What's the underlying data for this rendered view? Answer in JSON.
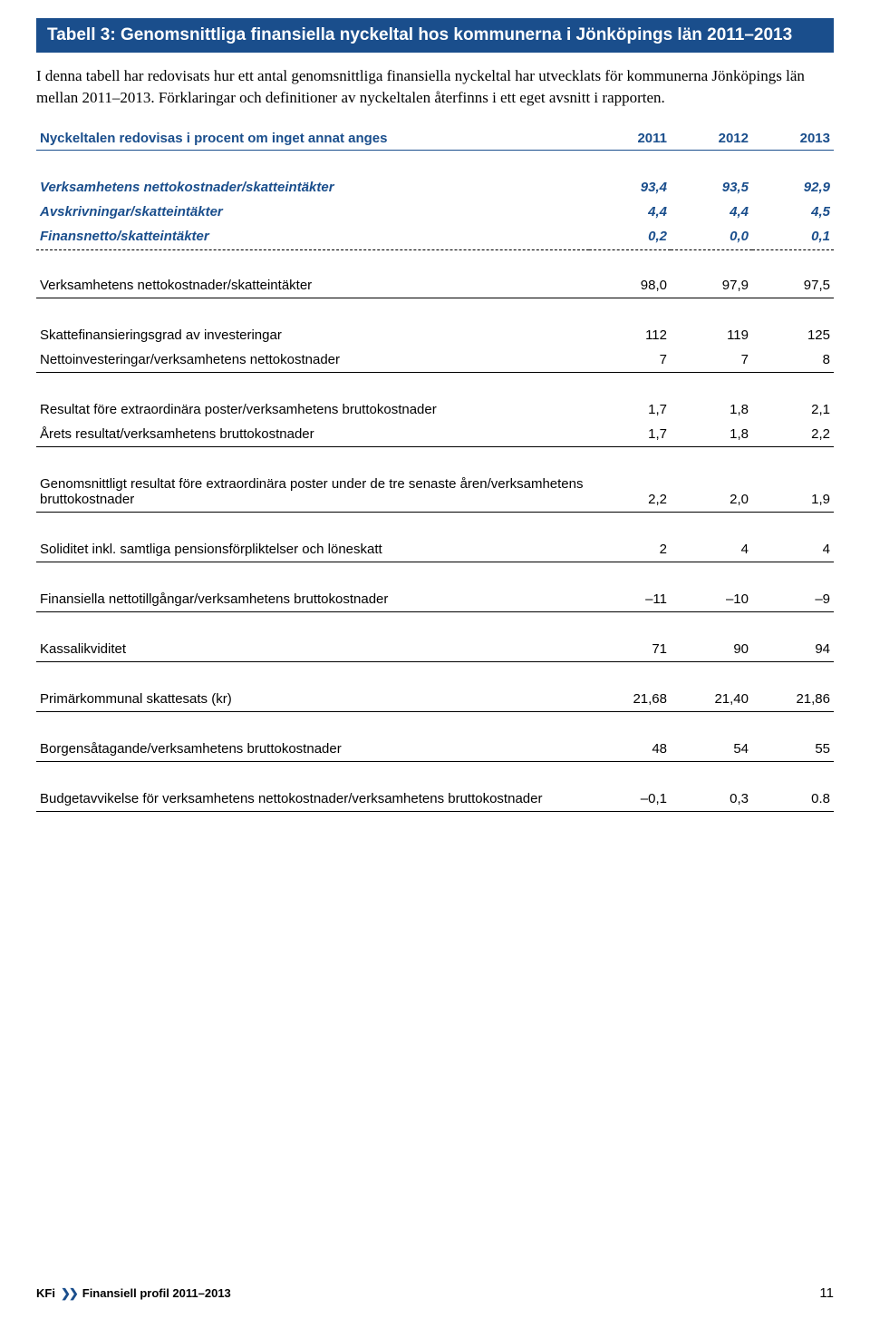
{
  "title": "Tabell 3: Genomsnittliga finansiella nyckeltal hos kommunerna i Jönköpings län 2011–2013",
  "intro": "I denna tabell har redovisats hur ett antal genomsnittliga finansiella nyckeltal har utvecklats för kommunerna Jönköpings län mellan 2011–2013. Förklaringar och definitioner av nyckeltalen återfinns i ett eget avsnitt i rapporten.",
  "header": {
    "subhead": "Nyckeltalen redovisas i procent om inget annat anges",
    "years": [
      "2011",
      "2012",
      "2013"
    ]
  },
  "blue_rows": [
    {
      "label": "Verksamhetens nettokostnader/skatteintäkter",
      "vals": [
        "93,4",
        "93,5",
        "92,9"
      ]
    },
    {
      "label": "Avskrivningar/skatteintäkter",
      "vals": [
        "4,4",
        "4,4",
        "4,5"
      ]
    },
    {
      "label": "Finansnetto/skatteintäkter",
      "vals": [
        "0,2",
        "0,0",
        "0,1"
      ]
    }
  ],
  "groups": [
    [
      {
        "label": "Verksamhetens nettokostnader/skatteintäkter",
        "vals": [
          "98,0",
          "97,9",
          "97,5"
        ]
      }
    ],
    [
      {
        "label": "Skattefinansieringsgrad av investeringar",
        "vals": [
          "112",
          "119",
          "125"
        ]
      },
      {
        "label": "Nettoinvesteringar/verksamhetens nettokostnader",
        "vals": [
          "7",
          "7",
          "8"
        ]
      }
    ],
    [
      {
        "label": "Resultat före extraordinära poster/verksamhetens bruttokostnader",
        "vals": [
          "1,7",
          "1,8",
          "2,1"
        ]
      },
      {
        "label": "Årets resultat/verksamhetens bruttokostnader",
        "vals": [
          "1,7",
          "1,8",
          "2,2"
        ]
      }
    ],
    [
      {
        "label": "Genomsnittligt resultat före extraordinära poster under de tre senaste åren/verksamhetens bruttokostnader",
        "vals": [
          "2,2",
          "2,0",
          "1,9"
        ]
      }
    ],
    [
      {
        "label": "Soliditet inkl. samtliga pensionsförpliktelser och löneskatt",
        "vals": [
          "2",
          "4",
          "4"
        ]
      }
    ],
    [
      {
        "label": "Finansiella nettotillgångar/verksamhetens bruttokostnader",
        "vals": [
          "–11",
          "–10",
          "–9"
        ]
      }
    ],
    [
      {
        "label": "Kassalikviditet",
        "vals": [
          "71",
          "90",
          "94"
        ]
      }
    ],
    [
      {
        "label": "Primärkommunal skattesats (kr)",
        "vals": [
          "21,68",
          "21,40",
          "21,86"
        ]
      }
    ],
    [
      {
        "label": "Borgensåtagande/verksamhetens bruttokostnader",
        "vals": [
          "48",
          "54",
          "55"
        ]
      }
    ],
    [
      {
        "label": "Budgetavvikelse för verksamhetens nettokostnader/verksamhetens bruttokostnader",
        "vals": [
          "–0,1",
          "0,3",
          "0.8"
        ]
      }
    ]
  ],
  "footer": {
    "brand": "KFi",
    "arrows": "❯❯",
    "text": "Finansiell profil 2011–2013",
    "page": "11"
  },
  "colors": {
    "brand_blue": "#1a4e8c",
    "text": "#000000",
    "bg": "#ffffff"
  }
}
